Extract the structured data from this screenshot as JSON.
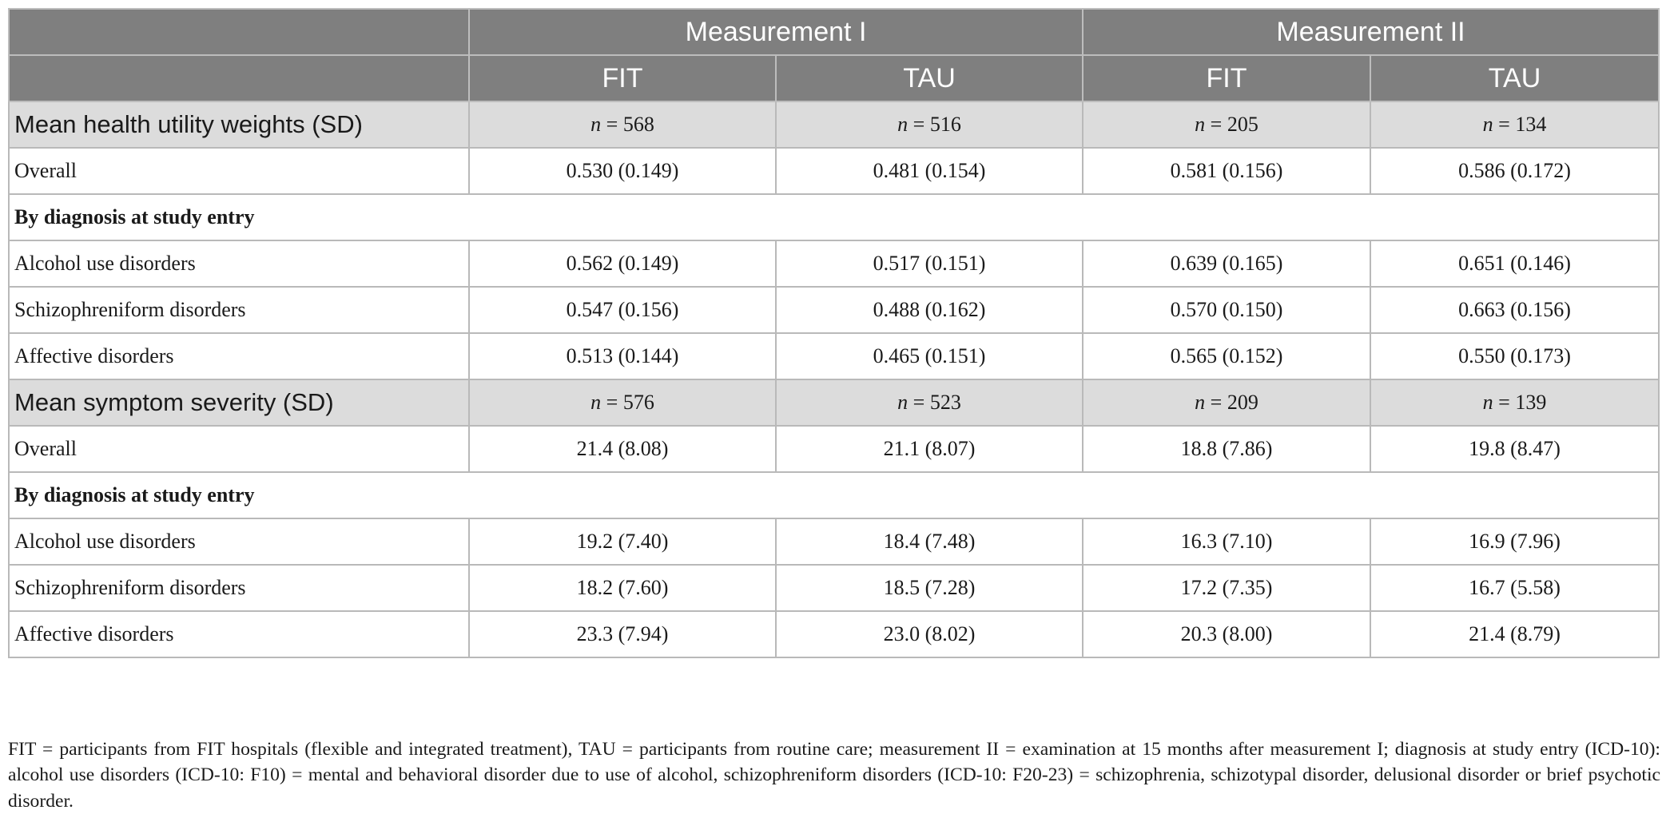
{
  "header": {
    "measurement_1": "Measurement I",
    "measurement_2": "Measurement II",
    "sub_columns": [
      "FIT",
      "TAU",
      "FIT",
      "TAU"
    ]
  },
  "sections": [
    {
      "title": "Mean health utility weights (SD)",
      "n_prefix": "n",
      "n_values": [
        "= 568",
        "= 516",
        "= 205",
        "= 134"
      ],
      "overall": {
        "label": "Overall",
        "values": [
          "0.530 (0.149)",
          "0.481 (0.154)",
          "0.581 (0.156)",
          "0.586 (0.172)"
        ]
      },
      "group_label": "By diagnosis at study entry",
      "rows": [
        {
          "label": "Alcohol use disorders",
          "values": [
            "0.562 (0.149)",
            "0.517 (0.151)",
            "0.639 (0.165)",
            "0.651 (0.146)"
          ]
        },
        {
          "label": "Schizophreniform disorders",
          "values": [
            "0.547 (0.156)",
            "0.488 (0.162)",
            "0.570 (0.150)",
            "0.663 (0.156)"
          ]
        },
        {
          "label": "Affective disorders",
          "values": [
            "0.513 (0.144)",
            "0.465 (0.151)",
            "0.565 (0.152)",
            "0.550 (0.173)"
          ]
        }
      ]
    },
    {
      "title": "Mean symptom severity (SD)",
      "n_prefix": "n",
      "n_values": [
        "= 576",
        "= 523",
        "= 209",
        "= 139"
      ],
      "overall": {
        "label": "Overall",
        "values": [
          "21.4 (8.08)",
          "21.1 (8.07)",
          "18.8 (7.86)",
          "19.8 (8.47)"
        ]
      },
      "group_label": "By diagnosis at study entry",
      "rows": [
        {
          "label": "Alcohol use disorders",
          "values": [
            "19.2 (7.40)",
            "18.4 (7.48)",
            "16.3 (7.10)",
            "16.9 (7.96)"
          ]
        },
        {
          "label": "Schizophreniform disorders",
          "values": [
            "18.2 (7.60)",
            "18.5 (7.28)",
            "17.2 (7.35)",
            "16.7 (5.58)"
          ]
        },
        {
          "label": "Affective disorders",
          "values": [
            "23.3 (7.94)",
            "23.0 (8.02)",
            "20.3 (8.00)",
            "21.4 (8.79)"
          ]
        }
      ]
    }
  ],
  "footnote": "FIT = participants from FIT hospitals (flexible and integrated treatment), TAU = participants from routine care; measurement II = examination at 15 months after measurement I; diagnosis at study entry (ICD-10): alcohol use disorders (ICD-10: F10) = mental and behavioral disorder due to use of alcohol, schizophreniform disorders (ICD-10: F20-23) = schizophrenia, schizotypal disorder, delusional disorder or brief psychotic disorder.",
  "colors": {
    "header_bg": "#7f7f7f",
    "section_bg": "#dcdcdc",
    "grid": "#b9b9b9"
  }
}
